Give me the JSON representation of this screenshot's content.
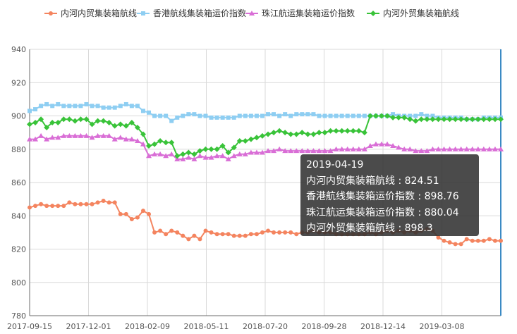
{
  "chart_data": {
    "type": "line",
    "title": "",
    "xlabel": "",
    "ylabel": "",
    "ylim": [
      780,
      940
    ],
    "yticks": [
      "940",
      "920",
      "900",
      "880",
      "860",
      "840",
      "820",
      "800",
      "780"
    ],
    "xtick_labels": [
      "2017-09-15",
      "2017-12-01",
      "2018-02-09",
      "2018-05-11",
      "2018-07-20",
      "2018-09-28",
      "2018-12-14",
      "2019-03-08"
    ],
    "grid": true,
    "legend_position": "top",
    "series": [
      {
        "name": "内河内贸集装箱航线",
        "color": "#f4845f",
        "marker": "circle",
        "values": [
          845,
          846,
          847,
          846,
          846,
          846,
          846,
          848,
          847,
          847,
          847,
          847,
          848,
          849,
          848,
          848,
          841,
          841,
          838,
          839,
          843,
          841,
          830,
          831,
          829,
          831,
          830,
          828,
          826,
          828,
          826,
          831,
          830,
          829,
          829,
          829,
          828,
          828,
          828,
          829,
          829,
          830,
          831,
          830,
          830,
          830,
          830,
          829,
          830,
          830,
          831,
          830,
          830,
          830,
          829,
          829,
          829,
          829,
          829,
          829,
          830,
          829,
          830,
          831,
          830,
          831,
          830,
          831,
          830,
          831,
          832,
          831,
          827,
          825,
          824,
          823,
          823,
          826,
          825,
          825,
          825,
          826,
          825,
          825
        ]
      },
      {
        "name": "香港航线集装箱运价指数",
        "color": "#8ecef2",
        "marker": "square",
        "values": [
          903,
          904,
          906,
          907,
          906,
          907,
          906,
          906,
          906,
          906,
          907,
          906,
          906,
          905,
          905,
          905,
          906,
          907,
          906,
          906,
          903,
          902,
          900,
          900,
          900,
          897,
          899,
          900,
          901,
          901,
          900,
          900,
          899,
          899,
          899,
          899,
          899,
          900,
          900,
          900,
          900,
          900,
          901,
          901,
          900,
          901,
          900,
          901,
          901,
          901,
          901,
          900,
          900,
          900,
          900,
          900,
          900,
          900,
          900,
          900,
          900,
          900,
          900,
          900,
          901,
          900,
          900,
          900,
          900,
          901,
          900,
          900,
          899,
          899,
          899,
          899,
          899,
          898,
          898,
          898,
          899,
          899,
          899,
          899
        ]
      },
      {
        "name": "珠江航运集装箱运价指数",
        "color": "#d96ed6",
        "marker": "triangle",
        "values": [
          886,
          886,
          888,
          886,
          887,
          887,
          888,
          888,
          888,
          888,
          888,
          887,
          888,
          888,
          888,
          886,
          887,
          886,
          886,
          885,
          883,
          876,
          877,
          877,
          876,
          877,
          874,
          874,
          875,
          874,
          876,
          875,
          875,
          876,
          876,
          874,
          876,
          877,
          877,
          878,
          878,
          878,
          879,
          879,
          880,
          879,
          879,
          879,
          879,
          879,
          879,
          879,
          879,
          879,
          880,
          880,
          880,
          880,
          880,
          880,
          882,
          883,
          883,
          883,
          882,
          881,
          880,
          880,
          879,
          879,
          879,
          880,
          880,
          880,
          880,
          880,
          880,
          880,
          880,
          880,
          880,
          880,
          880,
          880
        ]
      },
      {
        "name": "内河外贸集装箱航线",
        "color": "#39c339",
        "marker": "diamond",
        "values": [
          895,
          896,
          898,
          893,
          896,
          896,
          898,
          898,
          897,
          898,
          898,
          895,
          897,
          897,
          896,
          894,
          895,
          894,
          896,
          893,
          889,
          882,
          883,
          885,
          884,
          884,
          876,
          877,
          878,
          877,
          879,
          880,
          880,
          880,
          882,
          878,
          881,
          885,
          885,
          886,
          887,
          888,
          889,
          890,
          891,
          890,
          889,
          889,
          890,
          889,
          889,
          890,
          890,
          891,
          891,
          891,
          891,
          891,
          891,
          890,
          900,
          900,
          900,
          900,
          899,
          899,
          899,
          898,
          897,
          898,
          898,
          898,
          898,
          898,
          898,
          898,
          898,
          898,
          898,
          898,
          898,
          898,
          898,
          898
        ]
      }
    ],
    "tooltip": {
      "date": "2019-04-19",
      "rows": [
        {
          "name": "内河内贸集装箱航线",
          "value": "824.51"
        },
        {
          "name": "香港航线集装箱运价指数",
          "value": "898.76"
        },
        {
          "name": "珠江航运集装箱运价指数",
          "value": "880.04"
        },
        {
          "name": "内河外贸集装箱航线",
          "value": "898.3"
        }
      ]
    }
  }
}
